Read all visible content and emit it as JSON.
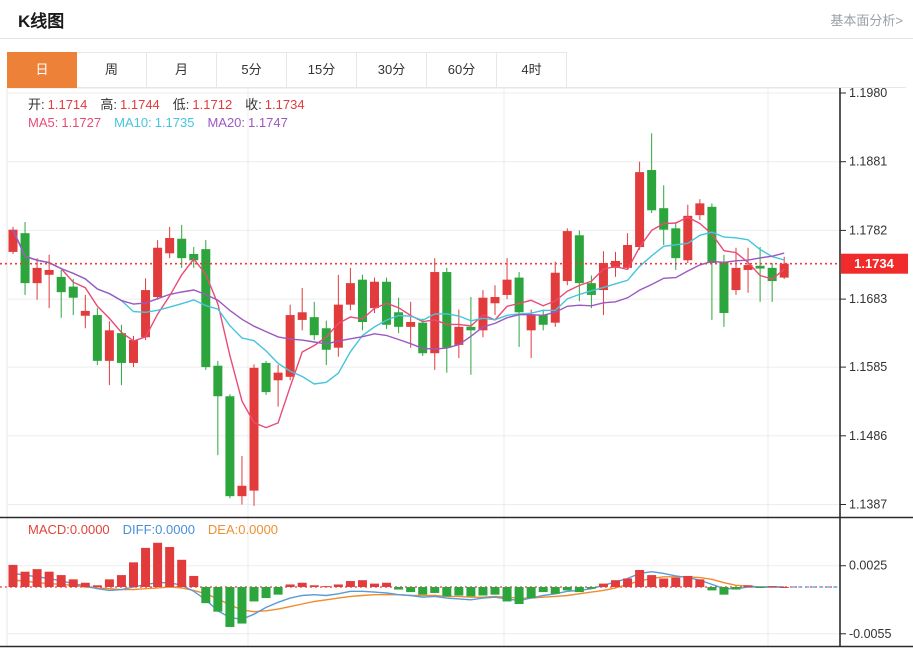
{
  "header": {
    "title": "K线图",
    "analysis_link": "基本面分析>"
  },
  "tabs": [
    {
      "label": "日",
      "active": true
    },
    {
      "label": "周",
      "active": false
    },
    {
      "label": "月",
      "active": false
    },
    {
      "label": "5分",
      "active": false
    },
    {
      "label": "15分",
      "active": false
    },
    {
      "label": "30分",
      "active": false
    },
    {
      "label": "60分",
      "active": false
    },
    {
      "label": "4时",
      "active": false
    }
  ],
  "ohlc": {
    "open_label": "开:",
    "open": "1.1714",
    "high_label": "高:",
    "high": "1.1744",
    "low_label": "低:",
    "low": "1.1712",
    "close_label": "收:",
    "close": "1.1734",
    "value_color": "#e23b3f"
  },
  "ma_legend": [
    {
      "label": "MA5:",
      "value": "1.1727",
      "color": "#e84c76"
    },
    {
      "label": "MA10:",
      "value": "1.1735",
      "color": "#45c5dd"
    },
    {
      "label": "MA20:",
      "value": "1.1747",
      "color": "#9b59c0"
    }
  ],
  "macd_legend": [
    {
      "label": "MACD:",
      "value": "0.0000",
      "color": "#e0453a"
    },
    {
      "label": "DIFF:",
      "value": "0.0000",
      "color": "#4a8fdc"
    },
    {
      "label": "DEA:",
      "value": "0.0000",
      "color": "#ee8f33"
    }
  ],
  "chart_data": {
    "type": "candlestick+macd",
    "title": "K线图 (daily K-line with MA5/MA10/MA20 and MACD)",
    "price_axis_ticks": [
      "1.1980",
      "1.1881",
      "1.1782",
      "1.1683",
      "1.1585",
      "1.1486",
      "1.1387"
    ],
    "current_price": "1.1734",
    "macd_axis_ticks": [
      "0.0025",
      "-0.0055"
    ],
    "legend_position": "top-left",
    "grid": true,
    "colors": {
      "up": "#e23b3c",
      "down": "#2ca63c",
      "ma5": "#e84c76",
      "ma10": "#45c5dd",
      "ma20": "#9b59c0",
      "diff": "#5b9bd5",
      "dea": "#ef8c2e",
      "price_line": "#f0383d",
      "badge": "#f12b2b",
      "grid": "#ededed",
      "axis": "#2b2b2b",
      "tick_text": "#333333"
    },
    "ma_periods": [
      5,
      10,
      20
    ],
    "candles": [
      [
        1.1751,
        1.1787,
        1.1748,
        1.1783
      ],
      [
        1.1778,
        1.1794,
        1.1689,
        1.1706
      ],
      [
        1.1706,
        1.1742,
        1.1682,
        1.1728
      ],
      [
        1.1718,
        1.1747,
        1.167,
        1.1725
      ],
      [
        1.1715,
        1.1725,
        1.1656,
        1.1693
      ],
      [
        1.1701,
        1.1712,
        1.166,
        1.1685
      ],
      [
        1.1659,
        1.1689,
        1.1641,
        1.1666
      ],
      [
        1.166,
        1.167,
        1.1588,
        1.1594
      ],
      [
        1.1594,
        1.1651,
        1.1559,
        1.1638
      ],
      [
        1.1634,
        1.1646,
        1.1559,
        1.1591
      ],
      [
        1.1591,
        1.163,
        1.1585,
        1.1624
      ],
      [
        1.1628,
        1.1713,
        1.1624,
        1.1696
      ],
      [
        1.1686,
        1.1768,
        1.1682,
        1.1757
      ],
      [
        1.1749,
        1.1787,
        1.1742,
        1.1771
      ],
      [
        1.177,
        1.179,
        1.1728,
        1.1742
      ],
      [
        1.1748,
        1.1758,
        1.1728,
        1.1739
      ],
      [
        1.1755,
        1.1768,
        1.1581,
        1.1585
      ],
      [
        1.1587,
        1.1594,
        1.1458,
        1.1543
      ],
      [
        1.1543,
        1.1546,
        1.1396,
        1.1399
      ],
      [
        1.1399,
        1.1457,
        1.1387,
        1.1414
      ],
      [
        1.1407,
        1.1589,
        1.1385,
        1.1584
      ],
      [
        1.1591,
        1.1594,
        1.1545,
        1.1549
      ],
      [
        1.1566,
        1.1588,
        1.1528,
        1.1577
      ],
      [
        1.1571,
        1.1675,
        1.1566,
        1.166
      ],
      [
        1.1653,
        1.1699,
        1.1638,
        1.1664
      ],
      [
        1.1657,
        1.1679,
        1.1624,
        1.1631
      ],
      [
        1.1641,
        1.1652,
        1.1588,
        1.161
      ],
      [
        1.1613,
        1.1718,
        1.16,
        1.1675
      ],
      [
        1.1675,
        1.1728,
        1.1667,
        1.1706
      ],
      [
        1.1711,
        1.1718,
        1.1638,
        1.165
      ],
      [
        1.167,
        1.1714,
        1.1663,
        1.1708
      ],
      [
        1.1708,
        1.1714,
        1.164,
        1.1646
      ],
      [
        1.1664,
        1.1685,
        1.1634,
        1.1643
      ],
      [
        1.1643,
        1.1679,
        1.1613,
        1.165
      ],
      [
        1.1649,
        1.1655,
        1.1601,
        1.1605
      ],
      [
        1.1605,
        1.1742,
        1.1581,
        1.1722
      ],
      [
        1.1722,
        1.1728,
        1.1577,
        1.1613
      ],
      [
        1.1617,
        1.1668,
        1.1598,
        1.1643
      ],
      [
        1.1643,
        1.1686,
        1.1574,
        1.1638
      ],
      [
        1.1638,
        1.1696,
        1.1628,
        1.1685
      ],
      [
        1.1677,
        1.1703,
        1.166,
        1.1686
      ],
      [
        1.1689,
        1.1742,
        1.1683,
        1.1711
      ],
      [
        1.1714,
        1.1722,
        1.1614,
        1.1664
      ],
      [
        1.1638,
        1.1668,
        1.1598,
        1.166
      ],
      [
        1.166,
        1.1668,
        1.1638,
        1.1646
      ],
      [
        1.1649,
        1.1737,
        1.1643,
        1.1721
      ],
      [
        1.1709,
        1.1785,
        1.1703,
        1.1781
      ],
      [
        1.1775,
        1.1782,
        1.168,
        1.1706
      ],
      [
        1.1706,
        1.1717,
        1.167,
        1.1689
      ],
      [
        1.1696,
        1.1752,
        1.166,
        1.1735
      ],
      [
        1.1728,
        1.1751,
        1.1715,
        1.1738
      ],
      [
        1.1728,
        1.1778,
        1.1725,
        1.1761
      ],
      [
        1.1758,
        1.1881,
        1.1754,
        1.1866
      ],
      [
        1.1869,
        1.1922,
        1.1807,
        1.1811
      ],
      [
        1.1814,
        1.1847,
        1.1761,
        1.1783
      ],
      [
        1.1785,
        1.1794,
        1.1725,
        1.1742
      ],
      [
        1.1739,
        1.1819,
        1.1735,
        1.1803
      ],
      [
        1.1804,
        1.1827,
        1.1797,
        1.1821
      ],
      [
        1.1816,
        1.1821,
        1.1653,
        1.1735
      ],
      [
        1.1736,
        1.1747,
        1.1643,
        1.1663
      ],
      [
        1.1696,
        1.1757,
        1.1689,
        1.1728
      ],
      [
        1.1725,
        1.1757,
        1.1692,
        1.1732
      ],
      [
        1.1731,
        1.1758,
        1.1679,
        1.1727
      ],
      [
        1.1728,
        1.1735,
        1.1679,
        1.1709
      ],
      [
        1.1714,
        1.1744,
        1.1712,
        1.1734
      ]
    ],
    "macd": {
      "hist": [
        0.0026,
        0.0018,
        0.0021,
        0.0018,
        0.0014,
        0.0009,
        0.0005,
        0.0002,
        0.0009,
        0.0014,
        0.0029,
        0.0046,
        0.0052,
        0.0047,
        0.0032,
        0.0013,
        -0.0019,
        -0.0029,
        -0.0047,
        -0.0043,
        -0.0017,
        -0.0013,
        -0.0009,
        0.0003,
        0.0005,
        0.0002,
        0.0001,
        0.0003,
        0.0007,
        0.0008,
        0.0004,
        0.0005,
        -0.0003,
        -0.0006,
        -0.0009,
        -0.0007,
        -0.0011,
        -0.001,
        -0.0011,
        -0.001,
        -0.0009,
        -0.0017,
        -0.002,
        -0.0013,
        -0.0006,
        -0.0008,
        -0.0004,
        -0.0006,
        -0.0002,
        0.0004,
        0.0008,
        0.001,
        0.002,
        0.0014,
        0.001,
        0.0011,
        0.0013,
        0.0009,
        -0.0004,
        -0.0009,
        -0.0003,
        0.0002,
        -0.0001,
        0.0001,
        0.0
      ],
      "diff": [
        0.0016,
        0.0014,
        0.0012,
        0.001,
        0.0007,
        0.0004,
        0.0001,
        -0.0002,
        -0.0004,
        -0.0003,
        0.0,
        0.0003,
        0.0005,
        0.0005,
        0.0002,
        -0.0005,
        -0.0015,
        -0.0028,
        -0.0036,
        -0.0038,
        -0.0032,
        -0.0024,
        -0.0018,
        -0.0013,
        -0.001,
        -0.0009,
        -0.001,
        -0.0008,
        -0.0005,
        -0.0005,
        -0.0006,
        -0.0007,
        -0.0009,
        -0.001,
        -0.0012,
        -0.0011,
        -0.0013,
        -0.0014,
        -0.0015,
        -0.0013,
        -0.0012,
        -0.0014,
        -0.0016,
        -0.0013,
        -0.001,
        -0.0008,
        -0.0005,
        -0.0004,
        -0.0002,
        0.0002,
        0.0006,
        0.001,
        0.0016,
        0.0018,
        0.0016,
        0.0013,
        0.0011,
        0.0008,
        0.0003,
        -0.0002,
        -0.0002,
        0.0,
        0.0,
        0.0,
        0.0
      ],
      "dea": [
        0.0008,
        0.0007,
        0.0005,
        0.0004,
        0.0003,
        0.0002,
        0.0,
        -0.0001,
        -0.0002,
        -0.0003,
        -0.0003,
        -0.0002,
        -0.0001,
        0.0,
        -0.0001,
        -0.0004,
        -0.0008,
        -0.0014,
        -0.0021,
        -0.0027,
        -0.0029,
        -0.0028,
        -0.0026,
        -0.0023,
        -0.002,
        -0.0017,
        -0.0015,
        -0.0013,
        -0.0011,
        -0.001,
        -0.0009,
        -0.0009,
        -0.0009,
        -0.001,
        -0.001,
        -0.001,
        -0.0011,
        -0.0011,
        -0.0012,
        -0.0012,
        -0.0011,
        -0.0012,
        -0.0013,
        -0.0013,
        -0.0012,
        -0.0011,
        -0.001,
        -0.0008,
        -0.0006,
        -0.0004,
        -0.0001,
        0.0003,
        0.0007,
        0.001,
        0.0012,
        0.0012,
        0.0012,
        0.0011,
        0.0009,
        0.0005,
        0.0002,
        0.0001,
        0.0,
        0.0,
        0.0
      ]
    }
  }
}
